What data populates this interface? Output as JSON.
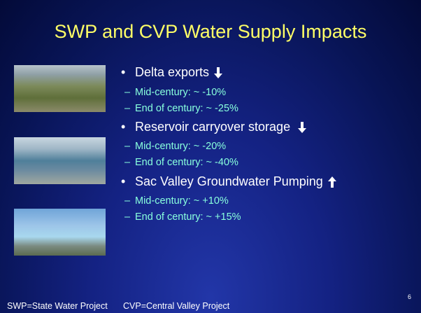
{
  "title": "SWP and CVP Water Supply Impacts",
  "bullets": [
    {
      "text": "Delta exports",
      "sub": [
        "Mid-century: ~ -10%",
        "End of century: ~ -25%"
      ]
    },
    {
      "text": "Reservoir carryover storage",
      "sub": [
        "Mid-century: ~ -20%",
        "End of century: ~ -40%"
      ]
    },
    {
      "text": "Sac Valley Groundwater Pumping",
      "sub": [
        "Mid-century: ~ +10%",
        "End of century: ~ +15%"
      ]
    }
  ],
  "footer": [
    "SWP=State Water Project",
    "CVP=Central Valley Project"
  ],
  "page_number": 6
}
